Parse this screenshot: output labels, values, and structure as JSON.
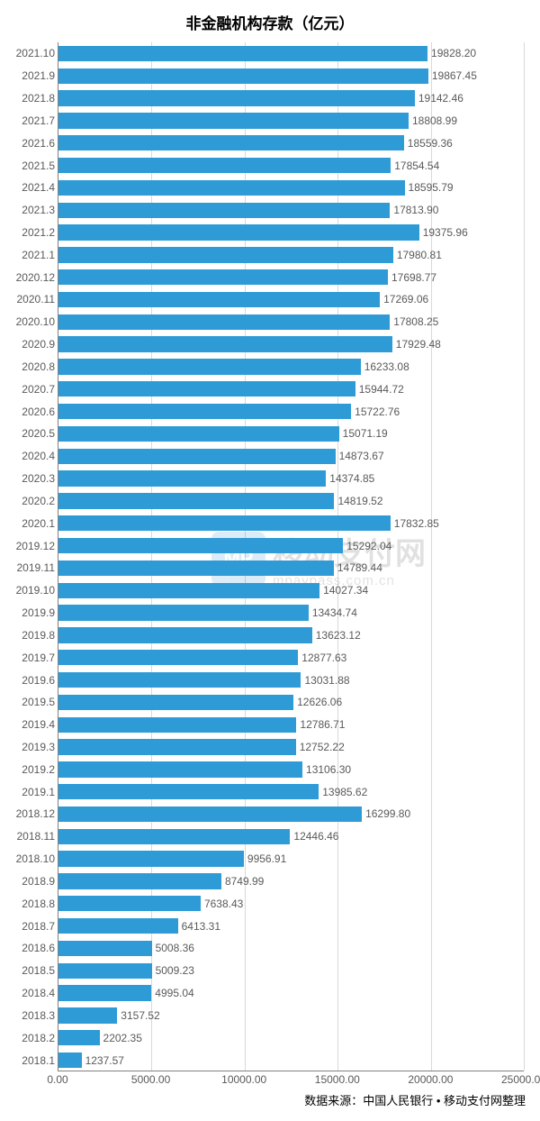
{
  "title": "非金融机构存款（亿元）",
  "source": "数据来源：中国人民银行 • 移动支付网整理",
  "watermark": {
    "logo_text": "MP",
    "main": "移动支付网",
    "sub": "mpaypass.com.cn"
  },
  "chart": {
    "type": "bar-horizontal",
    "background_color": "#ffffff",
    "bar_color": "#2e9bd6",
    "grid_color": "#d9d9d9",
    "axis_color": "#808080",
    "label_color": "#595959",
    "title_color": "#000000",
    "title_fontsize": 17,
    "label_fontsize": 12,
    "xlim": [
      0,
      25000
    ],
    "xticks": [
      "0.00",
      "5000.00",
      "10000.00",
      "15000.00",
      "20000.00",
      "25000.00"
    ],
    "xtick_values": [
      0,
      5000,
      10000,
      15000,
      20000,
      25000
    ],
    "bar_height_ratio": 0.7,
    "categories": [
      "2021.10",
      "2021.9",
      "2021.8",
      "2021.7",
      "2021.6",
      "2021.5",
      "2021.4",
      "2021.3",
      "2021.2",
      "2021.1",
      "2020.12",
      "2020.11",
      "2020.10",
      "2020.9",
      "2020.8",
      "2020.7",
      "2020.6",
      "2020.5",
      "2020.4",
      "2020.3",
      "2020.2",
      "2020.1",
      "2019.12",
      "2019.11",
      "2019.10",
      "2019.9",
      "2019.8",
      "2019.7",
      "2019.6",
      "2019.5",
      "2019.4",
      "2019.3",
      "2019.2",
      "2019.1",
      "2018.12",
      "2018.11",
      "2018.10",
      "2018.9",
      "2018.8",
      "2018.7",
      "2018.6",
      "2018.5",
      "2018.4",
      "2018.3",
      "2018.2",
      "2018.1"
    ],
    "values": [
      19828.2,
      19867.45,
      19142.46,
      18808.99,
      18559.36,
      17854.54,
      18595.79,
      17813.9,
      19375.96,
      17980.81,
      17698.77,
      17269.06,
      17808.25,
      17929.48,
      16233.08,
      15944.72,
      15722.76,
      15071.19,
      14873.67,
      14374.85,
      14819.52,
      17832.85,
      15292.04,
      14789.44,
      14027.34,
      13434.74,
      13623.12,
      12877.63,
      13031.88,
      12626.06,
      12786.71,
      12752.22,
      13106.3,
      13985.62,
      16299.8,
      12446.46,
      9956.91,
      8749.99,
      7638.43,
      6413.31,
      5008.36,
      5009.23,
      4995.04,
      3157.52,
      2202.35,
      1237.57
    ],
    "value_labels": [
      "19828.20",
      "19867.45",
      "19142.46",
      "18808.99",
      "18559.36",
      "17854.54",
      "18595.79",
      "17813.90",
      "19375.96",
      "17980.81",
      "17698.77",
      "17269.06",
      "17808.25",
      "17929.48",
      "16233.08",
      "15944.72",
      "15722.76",
      "15071.19",
      "14873.67",
      "14374.85",
      "14819.52",
      "17832.85",
      "15292.04",
      "14789.44",
      "14027.34",
      "13434.74",
      "13623.12",
      "12877.63",
      "13031.88",
      "12626.06",
      "12786.71",
      "12752.22",
      "13106.30",
      "13985.62",
      "16299.80",
      "12446.46",
      "9956.91",
      "8749.99",
      "7638.43",
      "6413.31",
      "5008.36",
      "5009.23",
      "4995.04",
      "3157.52",
      "2202.35",
      "1237.57"
    ]
  }
}
